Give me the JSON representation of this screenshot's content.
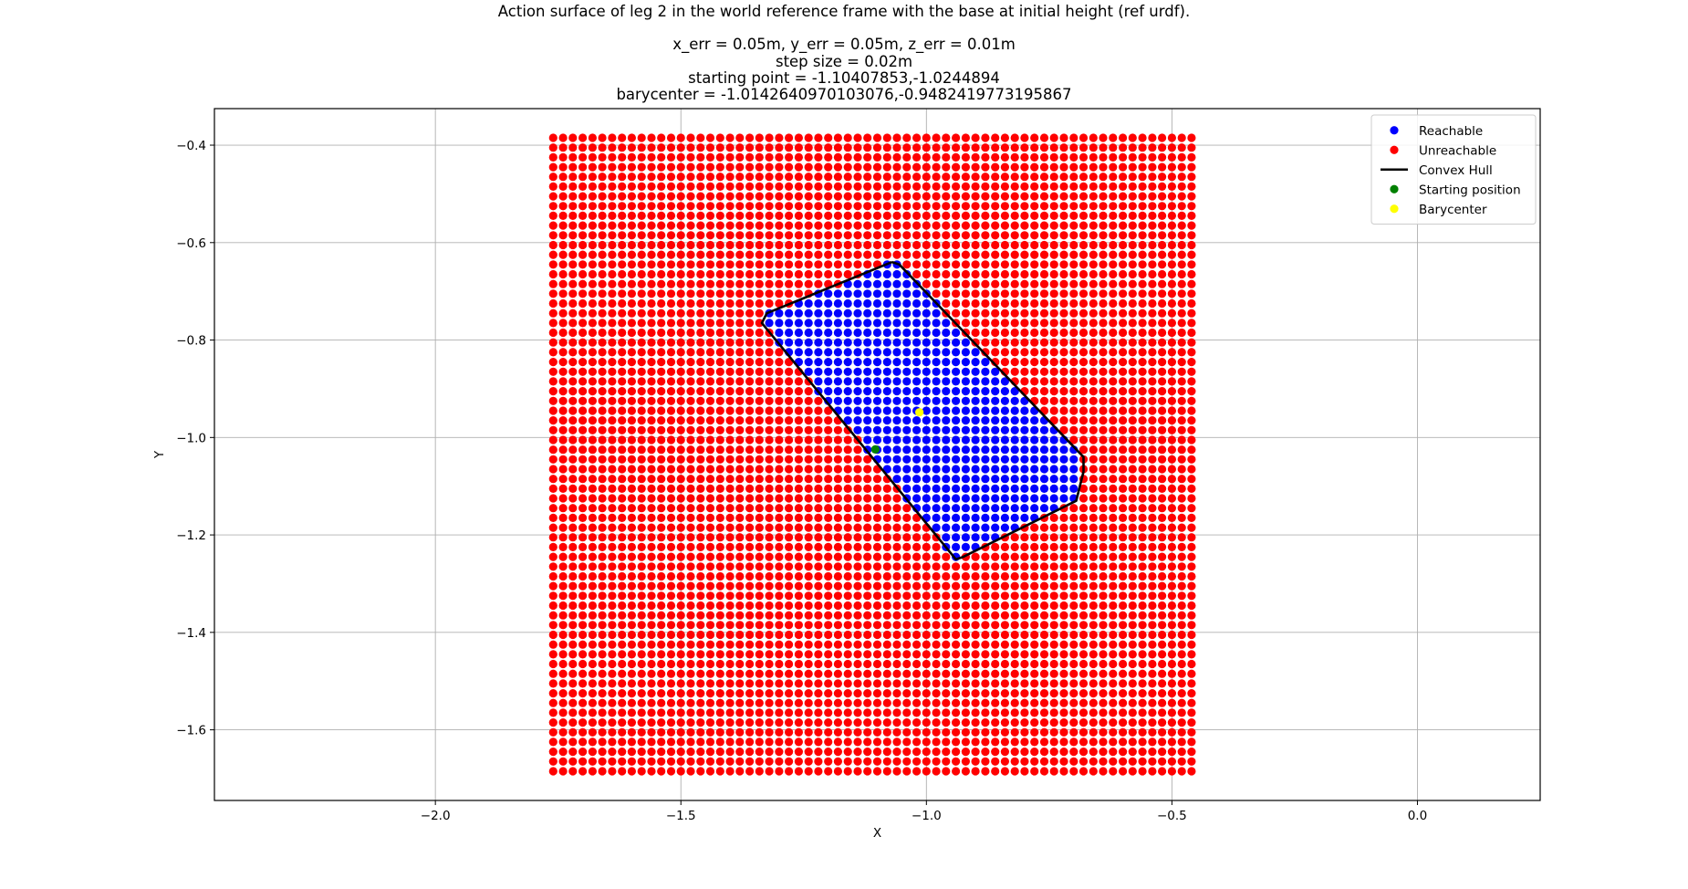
{
  "chart_data": {
    "type": "scatter",
    "title": "Action surface of leg 2 in the world reference frame with the base at initial height (ref urdf).",
    "subtitle_lines": [
      "x_err = 0.05m, y_err = 0.05m, z_err = 0.01m",
      "step size = 0.02m",
      "starting point = -1.10407853,-1.0244894",
      "barycenter = -1.0142640970103076,-0.9482419773195867"
    ],
    "xlabel": "X",
    "ylabel": "Y",
    "xlim": [
      -2.45,
      0.25
    ],
    "ylim": [
      -1.745,
      -0.325
    ],
    "xticks": [
      -2.0,
      -1.5,
      -1.0,
      -0.5,
      0.0
    ],
    "xtick_labels": [
      "−2.0",
      "−1.5",
      "−1.0",
      "−0.5",
      "0.0"
    ],
    "yticks": [
      -0.4,
      -0.6,
      -0.8,
      -1.0,
      -1.2,
      -1.4,
      -1.6
    ],
    "ytick_labels": [
      "−0.4",
      "−0.6",
      "−0.8",
      "−1.0",
      "−1.2",
      "−1.4",
      "−1.6"
    ],
    "grid": true,
    "legend_position": "top-right",
    "grid_sampling": {
      "x_start": -1.76,
      "x_end": -0.46,
      "y_start": -0.385,
      "y_end": -1.685,
      "step": 0.02
    },
    "series": [
      {
        "name": "Reachable",
        "marker": "circle",
        "color": "#0000ff"
      },
      {
        "name": "Unreachable",
        "marker": "circle",
        "color": "#ff0000"
      },
      {
        "name": "Convex Hull",
        "marker": "line",
        "color": "#000000",
        "vertices": [
          [
            -1.07,
            -0.64
          ],
          [
            -1.055,
            -0.645
          ],
          [
            -0.68,
            -1.04
          ],
          [
            -0.68,
            -1.07
          ],
          [
            -0.695,
            -1.13
          ],
          [
            -0.925,
            -1.245
          ],
          [
            -0.94,
            -1.25
          ],
          [
            -1.335,
            -0.765
          ],
          [
            -1.325,
            -0.745
          ],
          [
            -1.07,
            -0.64
          ]
        ]
      },
      {
        "name": "Starting position",
        "marker": "circle",
        "color": "#008000",
        "points": [
          [
            -1.10407853,
            -1.0244894
          ]
        ]
      },
      {
        "name": "Barycenter",
        "marker": "circle",
        "color": "#ffff00",
        "points": [
          [
            -1.0142640970103076,
            -0.9482419773195867
          ]
        ]
      }
    ]
  }
}
